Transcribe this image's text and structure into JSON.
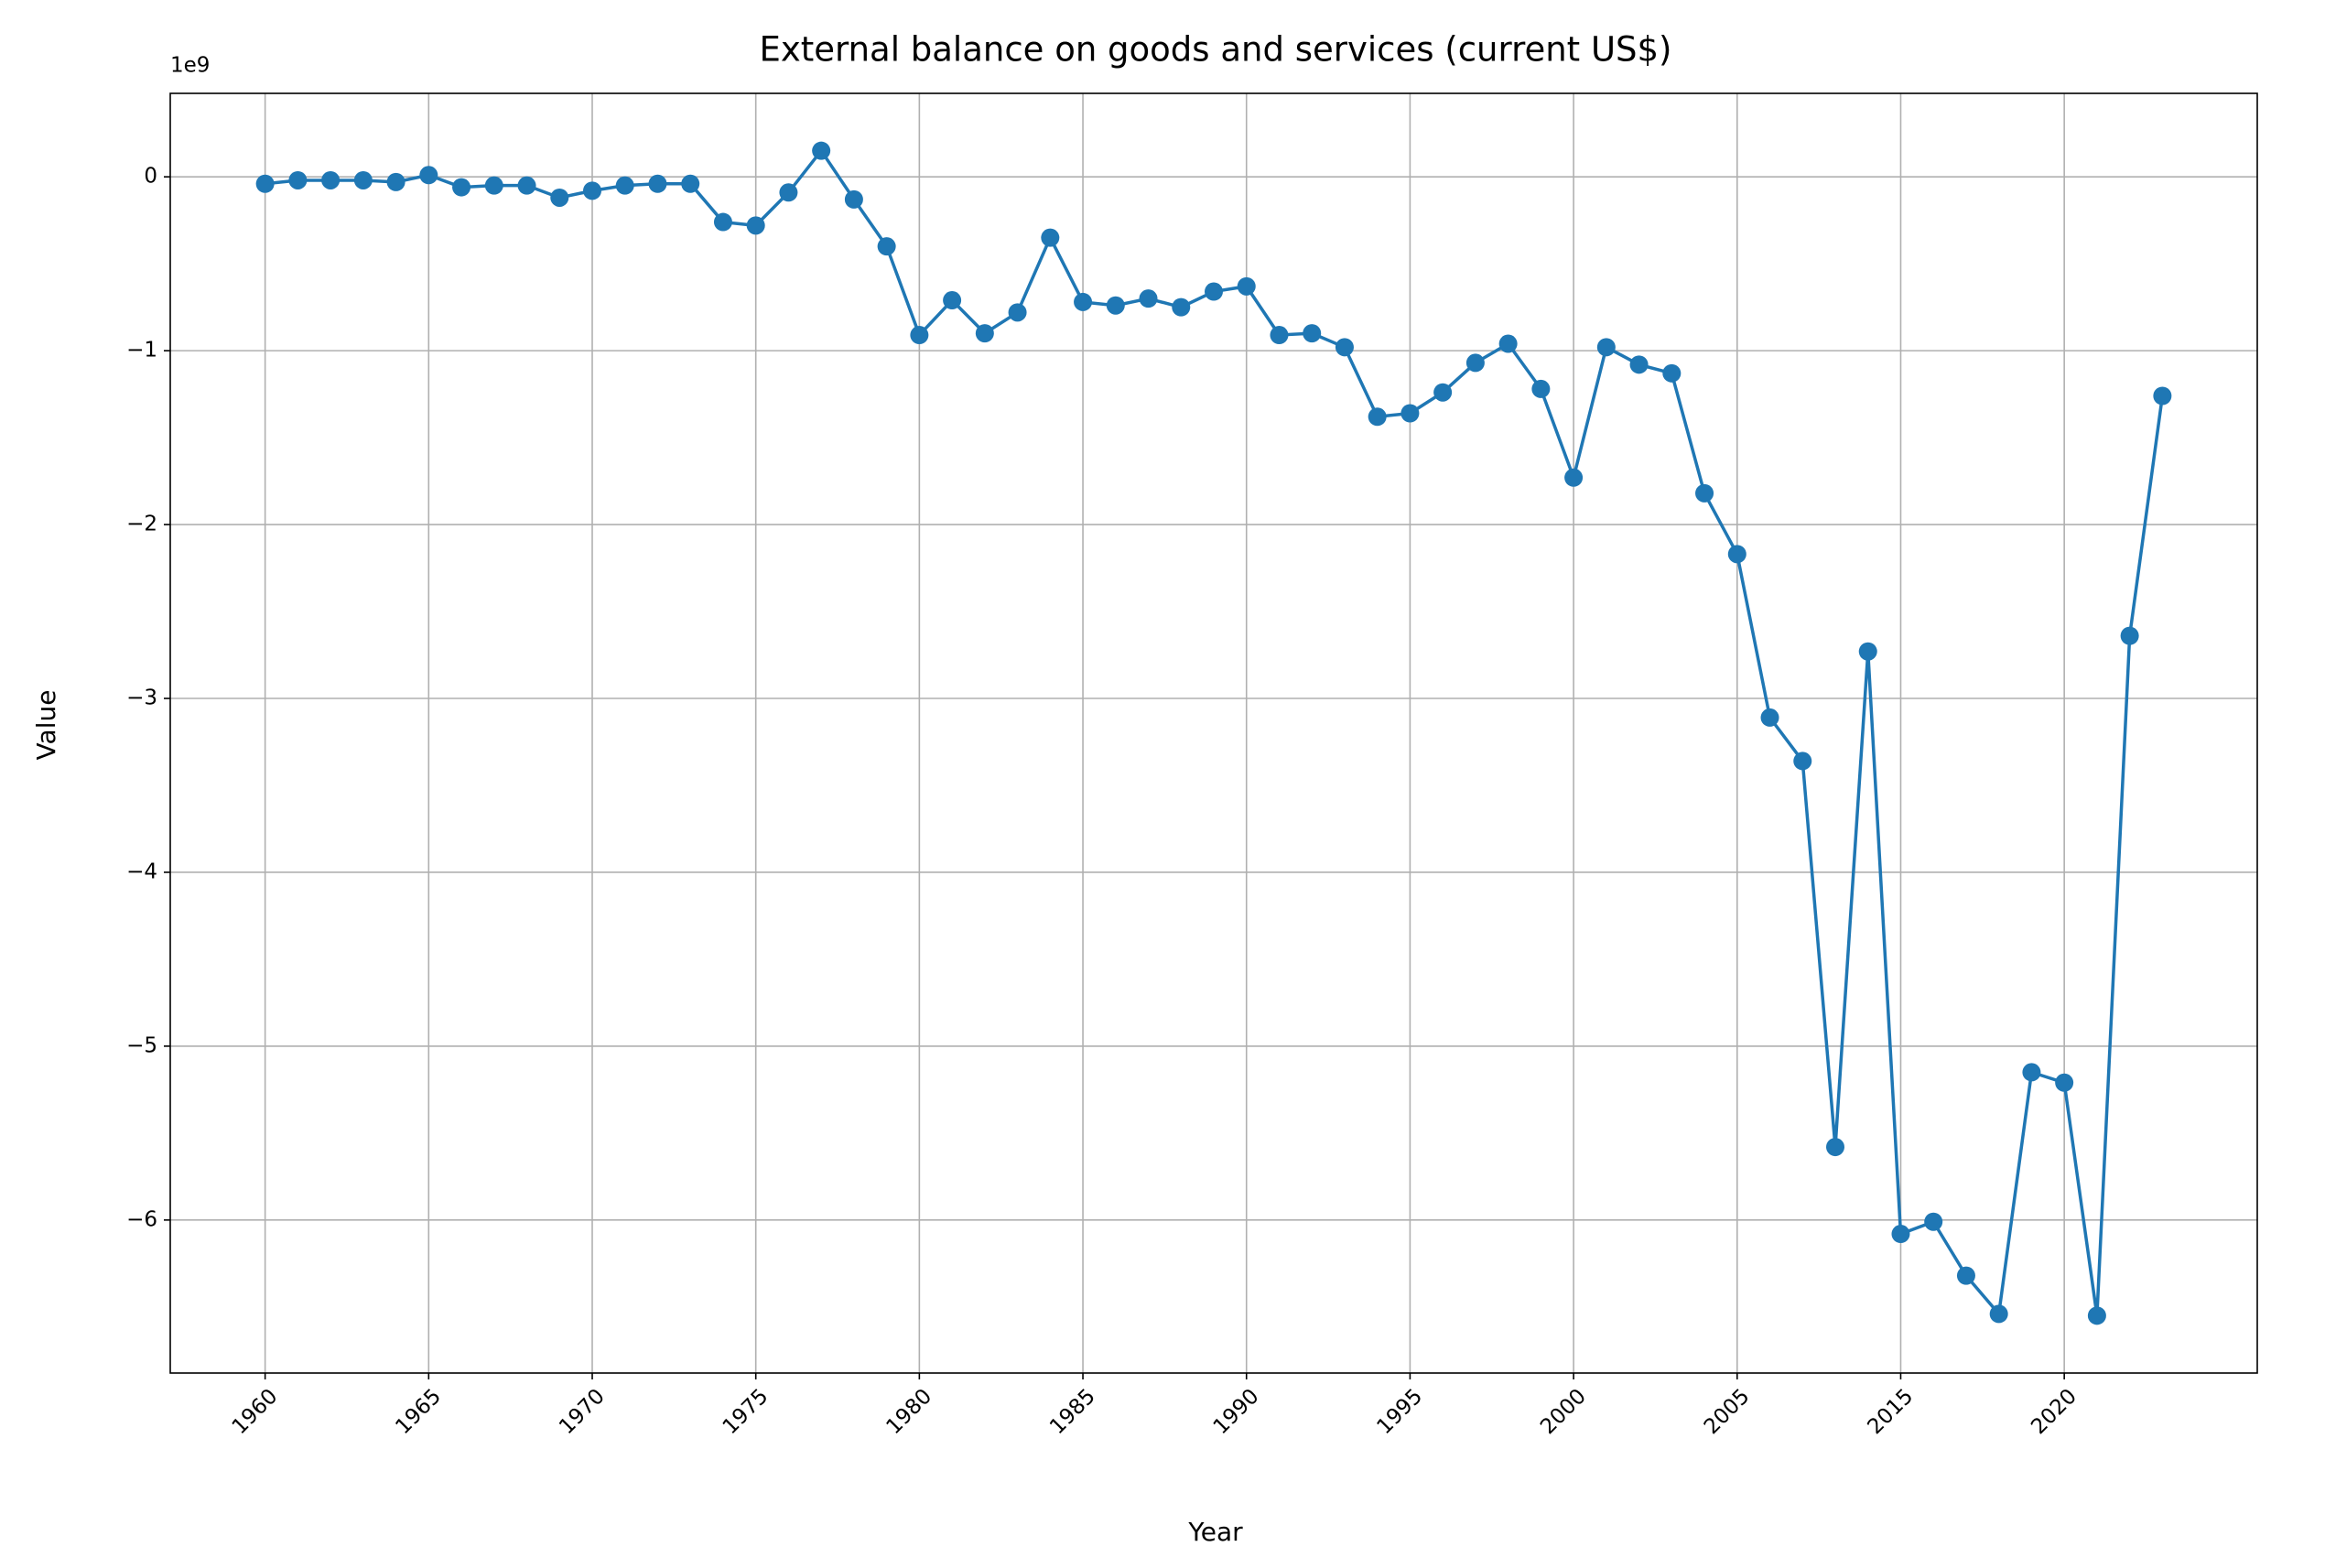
{
  "chart_data": {
    "type": "line",
    "title": "External balance on goods and services (current US$)",
    "x_label": "Year",
    "y_label": "Value",
    "y_offset_label": "1e9",
    "categories": [
      "1960",
      null,
      null,
      null,
      null,
      "1965",
      null,
      null,
      null,
      null,
      "1970",
      null,
      null,
      null,
      null,
      "1975",
      null,
      null,
      null,
      null,
      "1980",
      null,
      null,
      null,
      null,
      "1985",
      null,
      null,
      null,
      null,
      "1990",
      null,
      null,
      null,
      null,
      "1995",
      null,
      null,
      null,
      null,
      "2000",
      null,
      null,
      null,
      null,
      "2005",
      null,
      null,
      null,
      null,
      "2015",
      null,
      null,
      null,
      null,
      "2020",
      null,
      null,
      null
    ],
    "values": [
      -0.04,
      -0.02,
      -0.02,
      -0.02,
      -0.03,
      0.01,
      -0.06,
      -0.05,
      -0.05,
      -0.12,
      -0.08,
      -0.05,
      -0.04,
      -0.04,
      -0.26,
      -0.28,
      -0.09,
      0.15,
      -0.13,
      -0.4,
      -0.91,
      -0.71,
      -0.9,
      -0.78,
      -0.35,
      -0.72,
      -0.74,
      -0.7,
      -0.75,
      -0.66,
      -0.63,
      -0.91,
      -0.9,
      -0.98,
      -1.38,
      -1.36,
      -1.24,
      -1.07,
      -0.96,
      -1.22,
      -1.73,
      -0.98,
      -1.08,
      -1.13,
      -1.82,
      -2.17,
      -3.11,
      -3.36,
      -5.58,
      -2.73,
      -6.08,
      -6.01,
      -6.32,
      -6.54,
      -5.15,
      -5.21,
      -6.55,
      -2.64,
      -1.26
    ],
    "color": "#1f77b4",
    "ylim": [
      -6.88,
      0.48
    ],
    "yticks": [
      {
        "value": -6,
        "label": "−6"
      },
      {
        "value": -5,
        "label": "−5"
      },
      {
        "value": -4,
        "label": "−4"
      },
      {
        "value": -3,
        "label": "−3"
      },
      {
        "value": -2,
        "label": "−2"
      },
      {
        "value": -1,
        "label": "−1"
      },
      0
    ],
    "grid": true
  }
}
